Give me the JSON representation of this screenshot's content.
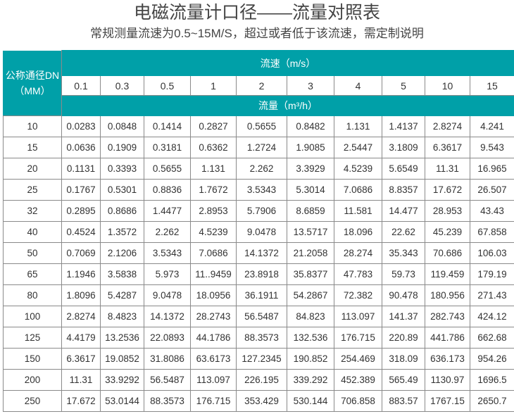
{
  "title": "电磁流量计口径——流量对照表",
  "subtitle": "常规测量流速为0.5~15M/S，超过或者低于该流速，需定制说明",
  "table": {
    "dn_header_line1": "公称通径DN",
    "dn_header_line2": "（MM）",
    "velocity_header": "流速（m/s）",
    "flow_header": "流量（m³/h）",
    "velocities": [
      "0.1",
      "0.3",
      "0.5",
      "1",
      "2",
      "3",
      "4",
      "5",
      "10",
      "15"
    ],
    "rows": [
      {
        "dn": "10",
        "values": [
          "0.0283",
          "0.0848",
          "0.1414",
          "0.2827",
          "0.5655",
          "0.8482",
          "1.131",
          "1.4137",
          "2.8274",
          "4.241"
        ]
      },
      {
        "dn": "15",
        "values": [
          "0.0636",
          "0.1909",
          "0.3181",
          "0.6362",
          "1.2724",
          "1.9085",
          "2.5447",
          "3.1809",
          "6.3617",
          "9.543"
        ]
      },
      {
        "dn": "20",
        "values": [
          "0.1131",
          "0.3393",
          "0.5655",
          "1.131",
          "2.262",
          "3.3929",
          "4.5239",
          "5.6549",
          "11.31",
          "16.965"
        ]
      },
      {
        "dn": "25",
        "values": [
          "0.1767",
          "0.5301",
          "0.8836",
          "1.7672",
          "3.5343",
          "5.3014",
          "7.0686",
          "8.8357",
          "17.672",
          "26.507"
        ]
      },
      {
        "dn": "32",
        "values": [
          "0.2895",
          "0.8686",
          "1.4477",
          "2.8953",
          "5.7906",
          "8.6859",
          "11.581",
          "14.477",
          "28.953",
          "43.43"
        ]
      },
      {
        "dn": "40",
        "values": [
          "0.4524",
          "1.3572",
          "2.262",
          "4.5239",
          "9.0478",
          "13.5717",
          "18.096",
          "22.62",
          "45.239",
          "67.858"
        ]
      },
      {
        "dn": "50",
        "values": [
          "0.7069",
          "2.1206",
          "3.5343",
          "7.0686",
          "14.1372",
          "21.2058",
          "28.274",
          "35.343",
          "70.686",
          "106.03"
        ]
      },
      {
        "dn": "65",
        "values": [
          "1.1946",
          "3.5838",
          "5.973",
          "11..9459",
          "23.8918",
          "35.8377",
          "47.783",
          "59.73",
          "119.459",
          "179.19"
        ]
      },
      {
        "dn": "80",
        "values": [
          "1.8096",
          "5.4287",
          "9.0478",
          "18.0956",
          "36.1911",
          "54.2867",
          "72.382",
          "90.478",
          "180.956",
          "271.43"
        ]
      },
      {
        "dn": "100",
        "values": [
          "2.8274",
          "8.4823",
          "14.1372",
          "28.2743",
          "56.5487",
          "84.823",
          "113.097",
          "141.37",
          "282.743",
          "424.12"
        ]
      },
      {
        "dn": "125",
        "values": [
          "4.4179",
          "13.2536",
          "22.0893",
          "44.1786",
          "88.3573",
          "132.536",
          "176.715",
          "220.89",
          "441.786",
          "662.68"
        ]
      },
      {
        "dn": "150",
        "values": [
          "6.3617",
          "19.0852",
          "31.8086",
          "63.6173",
          "127.2345",
          "190.852",
          "254.469",
          "318.09",
          "636.173",
          "954.26"
        ]
      },
      {
        "dn": "200",
        "values": [
          "11.31",
          "33.9292",
          "56.5487",
          "113.097",
          "226.195",
          "339.292",
          "452.389",
          "565.49",
          "1130.97",
          "1696.5"
        ]
      },
      {
        "dn": "250",
        "values": [
          "17.672",
          "53.0144",
          "88.3573",
          "176.715",
          "353.429",
          "530.144",
          "706.858",
          "883.57",
          "1767.15",
          "2650.7"
        ]
      }
    ]
  },
  "colors": {
    "header_teal": "#00a0a8",
    "text": "#333333"
  }
}
